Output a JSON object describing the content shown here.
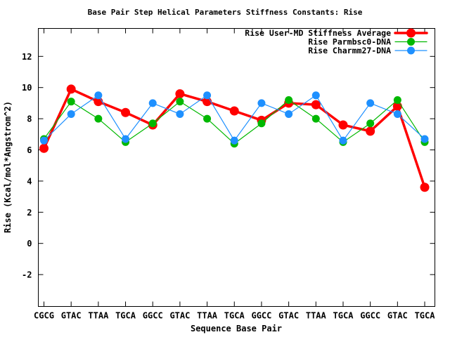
{
  "chart_data": {
    "type": "line",
    "title": "Base Pair Step Helical Parameters Stiffness Constants: Rise",
    "xlabel": "Sequence Base Pair",
    "ylabel": "Rise (Kcal/mol*Angstrom^2)",
    "categories": [
      "CGCG",
      "GTAC",
      "TTAA",
      "TGCA",
      "GGCC",
      "GTAC",
      "TTAA",
      "TGCA",
      "GGCC",
      "GTAC",
      "TTAA",
      "TGCA",
      "GGCC",
      "GTAC",
      "TGCA"
    ],
    "yticks": [
      -2,
      0,
      2,
      4,
      6,
      8,
      10,
      12
    ],
    "ylim": [
      -4,
      13.8
    ],
    "grid": false,
    "legend_position": "top-right-inside",
    "background_color": "#ffffff",
    "axis_color": "#000000",
    "series": [
      {
        "name": "Rise User-MD Stiffness Average",
        "color": "#ff0000",
        "line_width": 3.5,
        "marker": "circle",
        "marker_radius": 6.5,
        "values": [
          6.1,
          9.9,
          9.1,
          8.4,
          7.6,
          9.6,
          9.1,
          8.5,
          7.9,
          9.0,
          8.9,
          7.6,
          7.2,
          8.8,
          3.6
        ]
      },
      {
        "name": "Rise Parmbsc0-DNA",
        "color": "#00b800",
        "line_width": 1.2,
        "marker": "circle",
        "marker_radius": 5.5,
        "values": [
          6.7,
          9.1,
          8.0,
          6.5,
          7.7,
          9.1,
          8.0,
          6.4,
          7.7,
          9.2,
          8.0,
          6.5,
          7.7,
          9.2,
          6.5
        ]
      },
      {
        "name": "Rise Charmm27-DNA",
        "color": "#1e90ff",
        "line_width": 1.2,
        "marker": "circle",
        "marker_radius": 5.5,
        "values": [
          6.6,
          8.3,
          9.5,
          6.7,
          9.0,
          8.3,
          9.5,
          6.6,
          9.0,
          8.3,
          9.5,
          6.6,
          9.0,
          8.3,
          6.7
        ]
      }
    ]
  }
}
